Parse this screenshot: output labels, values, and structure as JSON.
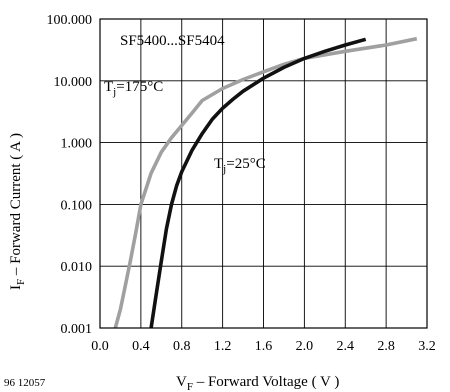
{
  "figure_id": "96 12057",
  "chart_data": {
    "type": "line",
    "title": "SF5400...SF5404",
    "x_axis": {
      "symbol": "V",
      "subscript": "F",
      "label": " – Forward Voltage ( V )",
      "range": [
        0.0,
        3.2
      ],
      "ticks": [
        "0.0",
        "0.4",
        "0.8",
        "1.2",
        "1.6",
        "2.0",
        "2.4",
        "2.8",
        "3.2"
      ]
    },
    "y_axis": {
      "symbol": "I",
      "subscript": "F",
      "label": " – Forward Current ( A )",
      "scale": "log",
      "range": [
        0.001,
        100
      ],
      "ticks": [
        "0.001",
        "0.010",
        "0.100",
        "1.000",
        "10.000",
        "100.000"
      ]
    },
    "grid": true,
    "series": [
      {
        "name": "Tj=175°C",
        "name_parts": {
          "prefix": "T",
          "sub": "j",
          "suffix": "=175°C"
        },
        "color": "#a0a0a0",
        "x": [
          0.15,
          0.2,
          0.25,
          0.3,
          0.35,
          0.4,
          0.5,
          0.6,
          0.7,
          0.8,
          0.9,
          1.0,
          1.2,
          1.4,
          1.6,
          1.8,
          2.0,
          2.4,
          2.8,
          3.1
        ],
        "y": [
          0.001,
          0.002,
          0.005,
          0.013,
          0.035,
          0.1,
          0.32,
          0.7,
          1.2,
          1.9,
          3.0,
          4.8,
          7.5,
          10.5,
          14.0,
          18.5,
          23.0,
          30.0,
          38.0,
          48.0
        ]
      },
      {
        "name": "Tj=25°C",
        "name_parts": {
          "prefix": "T",
          "sub": "j",
          "suffix": "=25°C"
        },
        "color": "#111111",
        "x": [
          0.5,
          0.55,
          0.6,
          0.65,
          0.7,
          0.75,
          0.8,
          0.9,
          1.0,
          1.1,
          1.2,
          1.3,
          1.4,
          1.6,
          1.8,
          2.0,
          2.2,
          2.4,
          2.6
        ],
        "y": [
          0.001,
          0.0035,
          0.012,
          0.04,
          0.1,
          0.2,
          0.34,
          0.75,
          1.4,
          2.4,
          3.6,
          5.0,
          6.8,
          11.0,
          16.5,
          23.0,
          30.0,
          38.0,
          47.0
        ]
      }
    ]
  }
}
